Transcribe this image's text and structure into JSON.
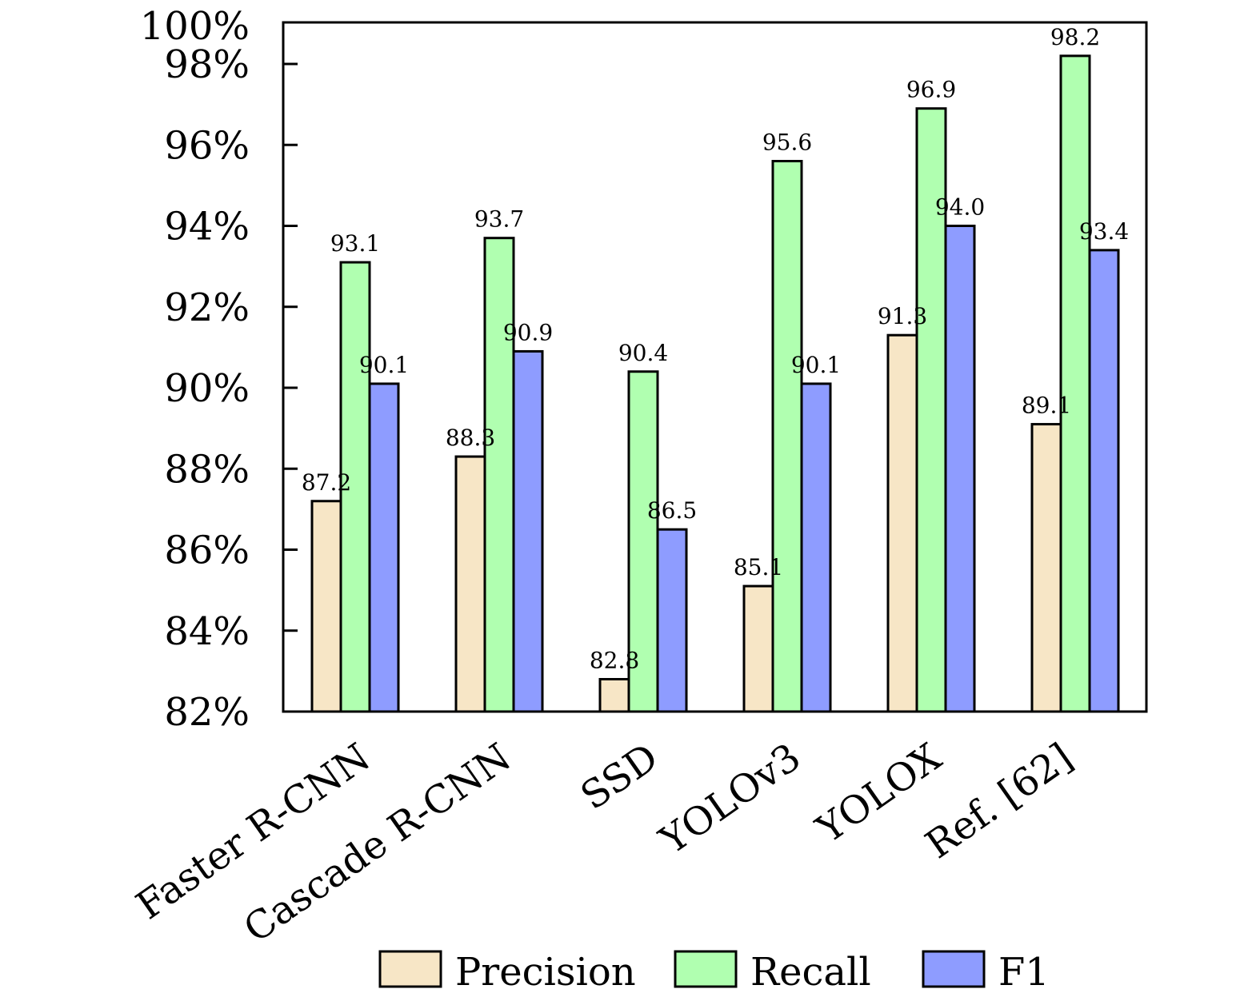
{
  "chart_data": {
    "type": "bar",
    "title": "",
    "xlabel": "",
    "ylabel": "",
    "categories": [
      "Faster R-CNN",
      "Cascade R-CNN",
      "SSD",
      "YOLOv3",
      "YOLOX",
      "Ref. [62]"
    ],
    "series": [
      {
        "name": "Precision",
        "color": "#f7e6c6",
        "values": [
          87.2,
          88.3,
          82.8,
          85.1,
          91.3,
          89.1
        ]
      },
      {
        "name": "Recall",
        "color": "#b0ffb0",
        "values": [
          93.1,
          93.7,
          90.4,
          95.6,
          96.9,
          98.2
        ]
      },
      {
        "name": "F1",
        "color": "#8e9cff",
        "values": [
          90.1,
          90.9,
          86.5,
          90.1,
          94.0,
          93.4
        ]
      }
    ],
    "ylim": [
      82,
      99
    ],
    "yticks": [
      82,
      84,
      86,
      88,
      90,
      92,
      94,
      96,
      98,
      100
    ],
    "ytick_labels": [
      "82%",
      "84%",
      "86%",
      "88%",
      "90%",
      "92%",
      "94%",
      "96%",
      "98%",
      "100%"
    ],
    "grid": false,
    "data_labels": true,
    "legend_position": "bottom-center",
    "xtick_rotation_deg": 35
  }
}
